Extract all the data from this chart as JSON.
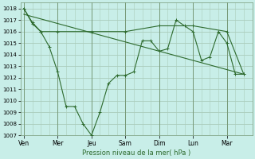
{
  "background_color": "#c8eee8",
  "grid_color": "#aaccbb",
  "line_color": "#2d6a2d",
  "marker": "+",
  "xlabel": "Pression niveau de la mer( hPa )",
  "ylim": [
    1007,
    1018.5
  ],
  "yticks": [
    1007,
    1008,
    1009,
    1010,
    1011,
    1012,
    1013,
    1014,
    1015,
    1016,
    1017,
    1018
  ],
  "xtick_labels": [
    "Ven",
    "Mer",
    "Jeu",
    "Sam",
    "Dim",
    "Lun",
    "Mar"
  ],
  "xtick_positions": [
    0,
    2,
    4,
    6,
    8,
    10,
    12
  ],
  "xlim": [
    -0.2,
    13.5
  ],
  "series1_x": [
    0,
    0.5,
    1,
    1.5,
    2,
    2.5,
    3,
    3.5,
    4,
    4.5,
    5,
    5.5,
    6,
    6.5,
    7,
    7.5,
    8,
    8.5,
    9,
    9.5,
    10,
    10.5,
    11,
    11.5,
    12,
    12.5,
    13
  ],
  "series1_y": [
    1018,
    1016.7,
    1016,
    1014.7,
    1012.5,
    1009.5,
    1009.5,
    1008,
    1007,
    1009,
    1011.5,
    1012.2,
    1012.2,
    1012.5,
    1015.2,
    1015.2,
    1014.3,
    1014.5,
    1017,
    1016.5,
    1016,
    1013.5,
    1013.8,
    1016,
    1015,
    1012.3,
    1012.3
  ],
  "series2_x": [
    0,
    0.5,
    1,
    2,
    4,
    6,
    8,
    10,
    12,
    13
  ],
  "series2_y": [
    1018,
    1016.8,
    1016,
    1016,
    1016,
    1016,
    1016.5,
    1016.5,
    1016,
    1012.3
  ],
  "series3_x": [
    0,
    13
  ],
  "series3_y": [
    1017.5,
    1012.3
  ]
}
